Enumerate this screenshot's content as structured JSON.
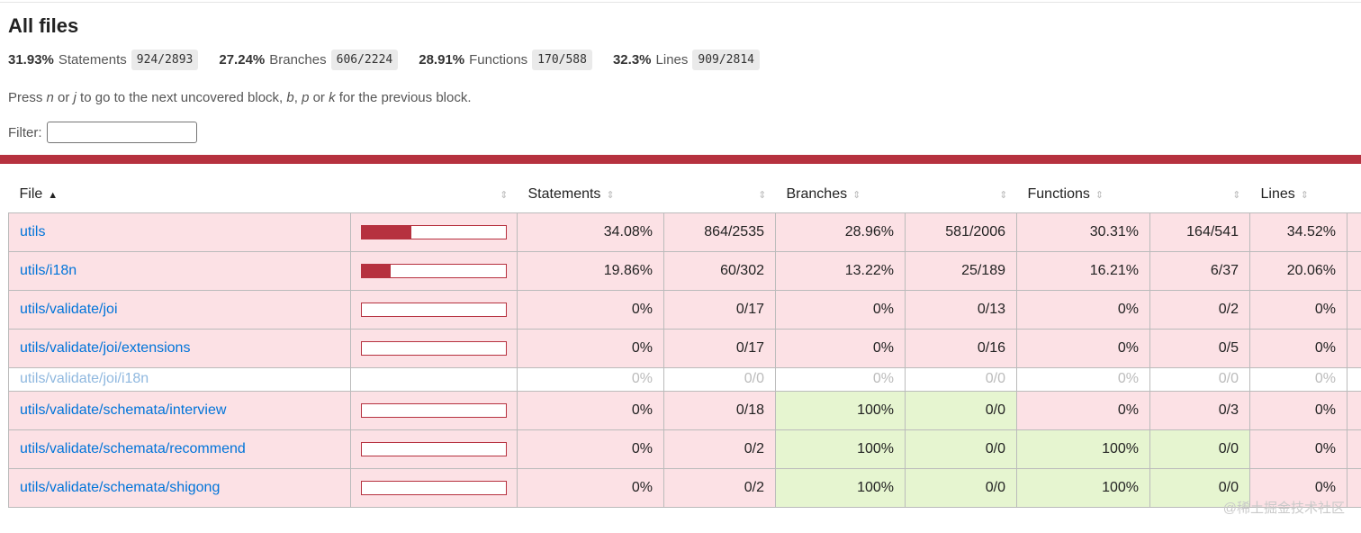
{
  "page": {
    "title": "All files",
    "summary": [
      {
        "pct": "31.93%",
        "label": "Statements",
        "fraction": "924/2893"
      },
      {
        "pct": "27.24%",
        "label": "Branches",
        "fraction": "606/2224"
      },
      {
        "pct": "28.91%",
        "label": "Functions",
        "fraction": "170/588"
      },
      {
        "pct": "32.3%",
        "label": "Lines",
        "fraction": "909/2814"
      }
    ],
    "hint": {
      "p1": "Press ",
      "k1": "n",
      "p2": " or ",
      "k2": "j",
      "p3": " to go to the next uncovered block, ",
      "k3": "b",
      "p4": ", ",
      "k4": "p",
      "p5": " or ",
      "k5": "k",
      "p6": " for the previous block."
    },
    "filter": {
      "label": "Filter:",
      "value": ""
    },
    "colors": {
      "low": "#fce1e5",
      "high": "#e6f5d0",
      "bar": "#b6313f"
    }
  },
  "table": {
    "headers": {
      "file": "File",
      "statements": "Statements",
      "branches": "Branches",
      "functions": "Functions",
      "lines": "Lines"
    },
    "sort_icons": {
      "active": "▲",
      "inactive": "⇕"
    },
    "rows": [
      {
        "file": "utils",
        "coverage": 34.08,
        "s_pct": "34.08%",
        "s_frac": "864/2535",
        "b_pct": "28.96%",
        "b_frac": "581/2006",
        "f_pct": "30.31%",
        "f_frac": "164/541",
        "l_pct": "34.52%"
      },
      {
        "file": "utils/i18n",
        "coverage": 19.86,
        "s_pct": "19.86%",
        "s_frac": "60/302",
        "b_pct": "13.22%",
        "b_frac": "25/189",
        "f_pct": "16.21%",
        "f_frac": "6/37",
        "l_pct": "20.06%"
      },
      {
        "file": "utils/validate/joi",
        "coverage": 0,
        "s_pct": "0%",
        "s_frac": "0/17",
        "b_pct": "0%",
        "b_frac": "0/13",
        "f_pct": "0%",
        "f_frac": "0/2",
        "l_pct": "0%"
      },
      {
        "file": "utils/validate/joi/extensions",
        "coverage": 0,
        "s_pct": "0%",
        "s_frac": "0/17",
        "b_pct": "0%",
        "b_frac": "0/16",
        "f_pct": "0%",
        "f_frac": "0/5",
        "l_pct": "0%"
      },
      {
        "file": "utils/validate/joi/i18n",
        "s_pct": "0%",
        "s_frac": "0/0",
        "b_pct": "0%",
        "b_frac": "0/0",
        "f_pct": "0%",
        "f_frac": "0/0",
        "l_pct": "0%"
      },
      {
        "file": "utils/validate/schemata/interview",
        "coverage": 0,
        "s_pct": "0%",
        "s_frac": "0/18",
        "b_pct": "100%",
        "b_frac": "0/0",
        "f_pct": "0%",
        "f_frac": "0/3",
        "l_pct": "0%"
      },
      {
        "file": "utils/validate/schemata/recommend",
        "coverage": 0,
        "s_pct": "0%",
        "s_frac": "0/2",
        "b_pct": "100%",
        "b_frac": "0/0",
        "f_pct": "100%",
        "f_frac": "0/0",
        "l_pct": "0%"
      },
      {
        "file": "utils/validate/schemata/shigong",
        "coverage": 0,
        "s_pct": "0%",
        "s_frac": "0/2",
        "b_pct": "100%",
        "b_frac": "0/0",
        "f_pct": "100%",
        "f_frac": "0/0",
        "l_pct": "0%"
      }
    ]
  },
  "watermark": "@稀土掘金技术社区"
}
